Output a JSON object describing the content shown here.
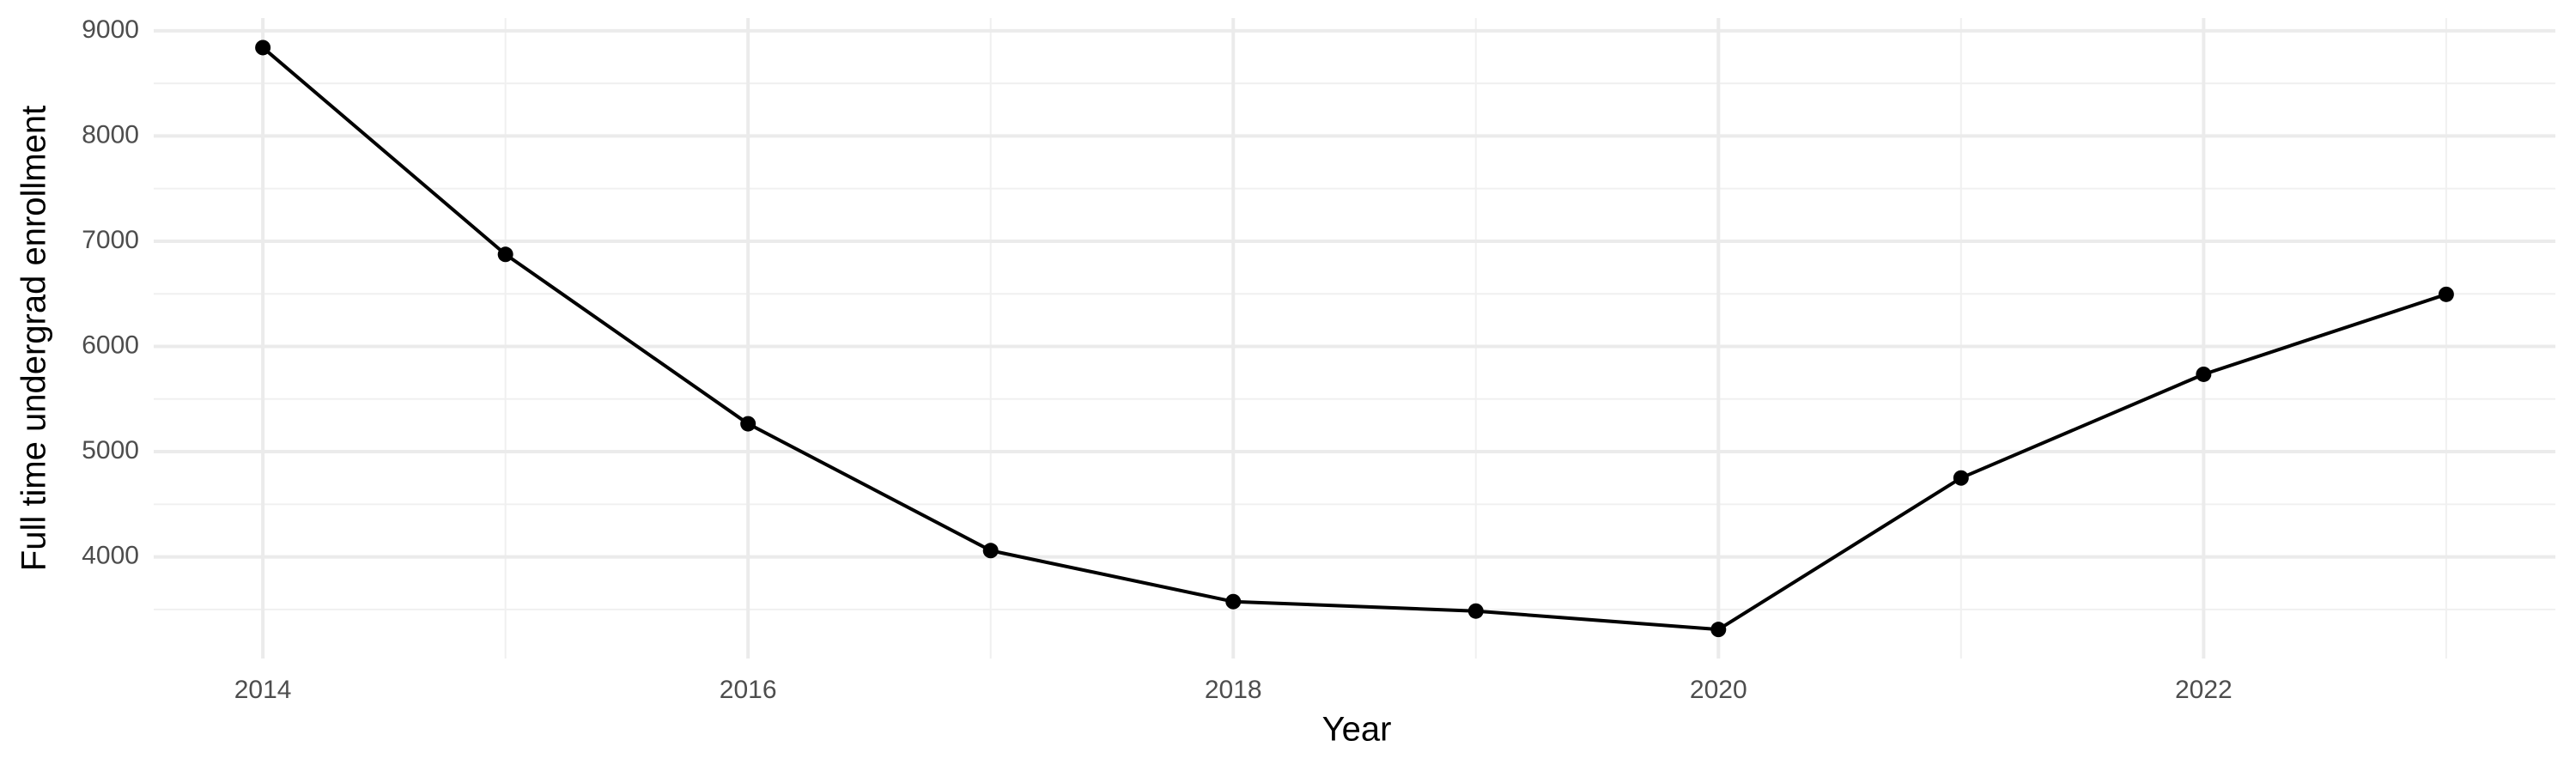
{
  "chart_data": {
    "type": "line",
    "x_label": "Year",
    "y_label": "Full time undergrad enrollment",
    "x": [
      2014,
      2015,
      2016,
      2017,
      2018,
      2019,
      2020,
      2021,
      2022,
      2023
    ],
    "series": [
      {
        "name": "Full time undergrad enrollment",
        "color": "#000000",
        "values": [
          8840,
          6875,
          5265,
          4060,
          3575,
          3485,
          3310,
          4750,
          5735,
          6495
        ]
      }
    ],
    "xlim": [
      2013.55,
      2023.45
    ],
    "xticks": [
      2014,
      2016,
      2018,
      2020,
      2022
    ],
    "ylim": [
      3034,
      9121
    ],
    "yticks": [
      4000,
      5000,
      6000,
      7000,
      8000,
      9000
    ],
    "grid": true
  }
}
